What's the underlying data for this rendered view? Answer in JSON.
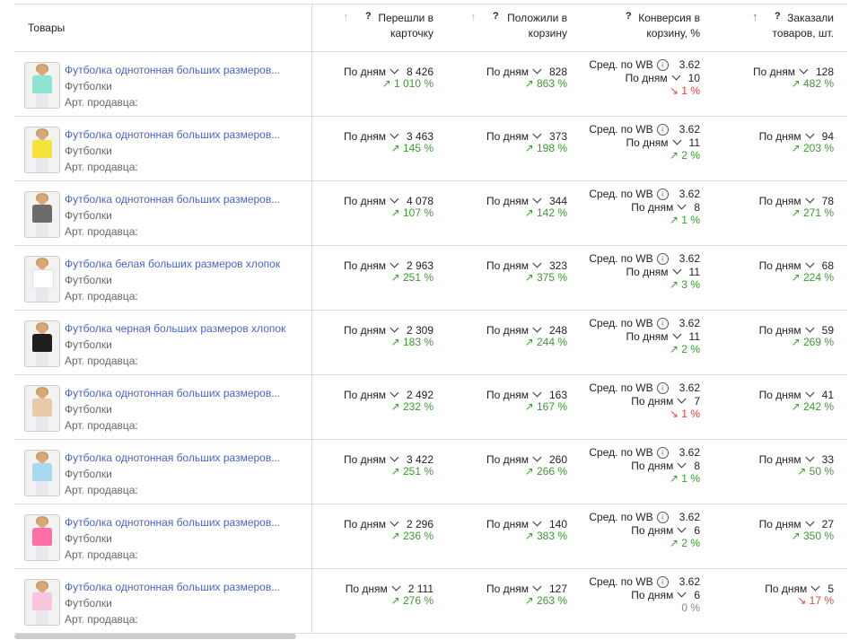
{
  "header": {
    "products": "Товары",
    "col1": [
      "Перешли в",
      "карточку"
    ],
    "col2": [
      "Положили в",
      "корзину"
    ],
    "col3": [
      "Конверсия в",
      "корзину, %"
    ],
    "col4": [
      "Заказали",
      "товаров, шт."
    ],
    "q": "?",
    "sort_icon": "↑"
  },
  "labels": {
    "by_days": "По дням",
    "avg_wb": "Сред. по WB",
    "category": "Футболки",
    "article": "Арт. продавца:"
  },
  "rows": [
    {
      "name": "Футболка однотонная больших размеров...",
      "shirt": "#8fe3d1",
      "visits": "8 426",
      "visits_d": "↗ 1 010 %",
      "cart": "828",
      "cart_d": "↗ 863 %",
      "avg": "3.62",
      "conv": "10",
      "conv_d": "↘ 1 %",
      "conv_t": "down",
      "orders": "128",
      "orders_d": "↗ 482 %",
      "orders_t": "up"
    },
    {
      "name": "Футболка однотонная больших размеров...",
      "shirt": "#f5e23a",
      "visits": "3 463",
      "visits_d": "↗ 145 %",
      "cart": "373",
      "cart_d": "↗ 198 %",
      "avg": "3.62",
      "conv": "11",
      "conv_d": "↗ 2 %",
      "conv_t": "up",
      "orders": "94",
      "orders_d": "↗ 203 %",
      "orders_t": "up"
    },
    {
      "name": "Футболка однотонная больших размеров...",
      "shirt": "#6b6b6b",
      "visits": "4 078",
      "visits_d": "↗ 107 %",
      "cart": "344",
      "cart_d": "↗ 142 %",
      "avg": "3.62",
      "conv": "8",
      "conv_d": "↗ 1 %",
      "conv_t": "up",
      "orders": "78",
      "orders_d": "↗ 271 %",
      "orders_t": "up"
    },
    {
      "name": "Футболка белая больших размеров хлопок",
      "shirt": "#ffffff",
      "visits": "2 963",
      "visits_d": "↗ 251 %",
      "cart": "323",
      "cart_d": "↗ 375 %",
      "avg": "3.62",
      "conv": "11",
      "conv_d": "↗ 3 %",
      "conv_t": "up",
      "orders": "68",
      "orders_d": "↗ 224 %",
      "orders_t": "up"
    },
    {
      "name": "Футболка черная больших размеров хлопок",
      "shirt": "#1e1e1e",
      "visits": "2 309",
      "visits_d": "↗ 183 %",
      "cart": "248",
      "cart_d": "↗ 244 %",
      "avg": "3.62",
      "conv": "11",
      "conv_d": "↗ 2 %",
      "conv_t": "up",
      "orders": "59",
      "orders_d": "↗ 269 %",
      "orders_t": "up"
    },
    {
      "name": "Футболка однотонная больших размеров...",
      "shirt": "#e9c9a8",
      "visits": "2 492",
      "visits_d": "↗ 232 %",
      "cart": "163",
      "cart_d": "↗ 167 %",
      "avg": "3.62",
      "conv": "7",
      "conv_d": "↘ 1 %",
      "conv_t": "down",
      "orders": "41",
      "orders_d": "↗ 242 %",
      "orders_t": "up"
    },
    {
      "name": "Футболка однотонная больших размеров...",
      "shirt": "#a8d8f0",
      "visits": "3 422",
      "visits_d": "↗ 251 %",
      "cart": "260",
      "cart_d": "↗ 266 %",
      "avg": "3.62",
      "conv": "8",
      "conv_d": "↗ 1 %",
      "conv_t": "up",
      "orders": "33",
      "orders_d": "↗ 50 %",
      "orders_t": "up"
    },
    {
      "name": "Футболка однотонная больших размеров...",
      "shirt": "#ff6fa8",
      "visits": "2 296",
      "visits_d": "↗ 236 %",
      "cart": "140",
      "cart_d": "↗ 383 %",
      "avg": "3.62",
      "conv": "6",
      "conv_d": "↗ 2 %",
      "conv_t": "up",
      "orders": "27",
      "orders_d": "↗ 350 %",
      "orders_t": "up"
    },
    {
      "name": "Футболка однотонная больших размеров...",
      "shirt": "#f7c6de",
      "visits": "2 111",
      "visits_d": "↗ 276 %",
      "cart": "127",
      "cart_d": "↗ 263 %",
      "avg": "3.62",
      "conv": "6",
      "conv_d": "0 %",
      "conv_t": "flat",
      "orders": "5",
      "orders_d": "↘ 17 %",
      "orders_t": "down"
    }
  ]
}
